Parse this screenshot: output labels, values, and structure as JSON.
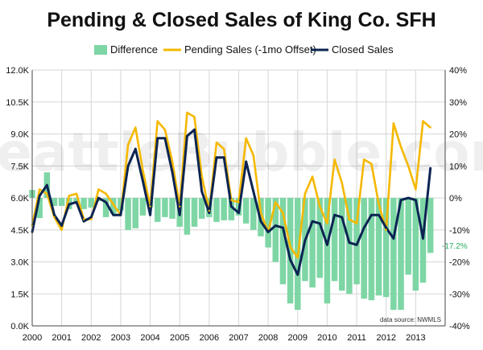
{
  "chart_data": {
    "type": "bar+line",
    "title": "Pending & Closed Sales of King Co. SFH",
    "legend": [
      {
        "name": "Difference",
        "color": "#7ed6a5",
        "kind": "bar"
      },
      {
        "name": "Pending Sales (-1mo Offset)",
        "color": "#f5b800",
        "kind": "line"
      },
      {
        "name": "Closed Sales",
        "color": "#0b2452",
        "kind": "line"
      }
    ],
    "legend_position": "top",
    "x_tick_labels": [
      "2000",
      "2001",
      "2002",
      "2003",
      "2004",
      "2005",
      "2006",
      "2007",
      "2008",
      "2009",
      "2010",
      "2011",
      "2012",
      "2013"
    ],
    "x_range": [
      2000.0,
      2014.0
    ],
    "y_left": {
      "range": [
        0,
        12000
      ],
      "ticks": [
        0,
        1500,
        3000,
        4500,
        6000,
        7500,
        9000,
        10500,
        12000
      ],
      "tick_labels": [
        "0.0K",
        "1.5K",
        "3.0K",
        "4.5K",
        "6.0K",
        "7.5K",
        "9.0K",
        "10.5K",
        "12.0K"
      ]
    },
    "y_right": {
      "range": [
        -40,
        40
      ],
      "ticks": [
        -40,
        -30,
        -20,
        -10,
        0,
        10,
        20,
        30,
        40
      ],
      "tick_labels": [
        "-40%",
        "-30%",
        "-20%",
        "-10%",
        "0%",
        "10%",
        "20%",
        "30%",
        "40%"
      ]
    },
    "grid": true,
    "watermark": "SeattleBubble.com",
    "source_note": "data source: NWMLS",
    "end_label": "-17.2%",
    "x": [
      2000.0,
      2000.25,
      2000.5,
      2000.75,
      2001.0,
      2001.25,
      2001.5,
      2001.75,
      2002.0,
      2002.25,
      2002.5,
      2002.75,
      2003.0,
      2003.25,
      2003.5,
      2003.75,
      2004.0,
      2004.25,
      2004.5,
      2004.75,
      2005.0,
      2005.25,
      2005.5,
      2005.75,
      2006.0,
      2006.25,
      2006.5,
      2006.75,
      2007.0,
      2007.25,
      2007.5,
      2007.75,
      2008.0,
      2008.25,
      2008.5,
      2008.75,
      2009.0,
      2009.25,
      2009.5,
      2009.75,
      2010.0,
      2010.25,
      2010.5,
      2010.75,
      2011.0,
      2011.25,
      2011.5,
      2011.75,
      2012.0,
      2012.25,
      2012.5,
      2012.75,
      2013.0,
      2013.25,
      2013.5
    ],
    "series": [
      {
        "name": "Closed Sales",
        "values": [
          4400,
          6100,
          6600,
          5200,
          4700,
          5700,
          5800,
          4900,
          5100,
          6000,
          5800,
          5200,
          5200,
          7500,
          8300,
          6800,
          5200,
          8800,
          8800,
          7200,
          5200,
          8900,
          9200,
          6300,
          5300,
          7900,
          7900,
          5600,
          5300,
          7700,
          6300,
          4900,
          4400,
          4700,
          4600,
          3100,
          2400,
          4000,
          4900,
          4800,
          3800,
          5200,
          5100,
          3900,
          3800,
          4600,
          5200,
          5200,
          4600,
          4100,
          5900,
          6000,
          5900,
          4100,
          7400
        ]
      },
      {
        "name": "Pending Sales (-1mo Offset)",
        "values": [
          4700,
          6400,
          6200,
          5100,
          4500,
          6100,
          6200,
          5000,
          5000,
          6400,
          6200,
          5700,
          5200,
          8500,
          9300,
          7300,
          5600,
          9600,
          9200,
          7700,
          5600,
          10000,
          9800,
          7000,
          5400,
          8600,
          8300,
          5900,
          5800,
          8800,
          8000,
          5300,
          4400,
          5800,
          5300,
          3700,
          3200,
          6200,
          7000,
          5600,
          4800,
          7800,
          6700,
          5000,
          4800,
          7800,
          7600,
          5700,
          4500,
          9500,
          8400,
          7500,
          6400,
          9600,
          9300
        ]
      },
      {
        "name": "Difference",
        "values": [
          2.5,
          -6.3,
          8.0,
          -2.5,
          -2.5,
          -3.5,
          -1.5,
          -3.5,
          -3.0,
          -1.0,
          -6.0,
          -5.0,
          -4.0,
          -10.0,
          -9.5,
          -5.5,
          -3.0,
          -7.5,
          -6.0,
          -6.5,
          -9.0,
          -11.5,
          -9.0,
          -6.5,
          -6.0,
          -7.5,
          -7.0,
          -7.0,
          -5.5,
          -8.0,
          -10.0,
          -12.0,
          -15.5,
          -20.0,
          -27.0,
          -33.0,
          -35.0,
          -26.0,
          -28.0,
          -25.0,
          -33.0,
          -26.0,
          -29.0,
          -30.0,
          -27.0,
          -31.5,
          -32.0,
          -30.5,
          -31.0,
          -35.0,
          -35.0,
          -24.0,
          -29.0,
          -26.5,
          -17.2
        ]
      }
    ]
  }
}
